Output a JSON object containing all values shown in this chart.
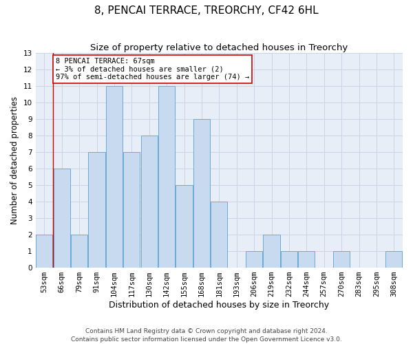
{
  "title1": "8, PENCAI TERRACE, TREORCHY, CF42 6HL",
  "title2": "Size of property relative to detached houses in Treorchy",
  "xlabel": "Distribution of detached houses by size in Treorchy",
  "ylabel": "Number of detached properties",
  "bar_labels": [
    "53sqm",
    "66sqm",
    "79sqm",
    "91sqm",
    "104sqm",
    "117sqm",
    "130sqm",
    "142sqm",
    "155sqm",
    "168sqm",
    "181sqm",
    "193sqm",
    "206sqm",
    "219sqm",
    "232sqm",
    "244sqm",
    "257sqm",
    "270sqm",
    "283sqm",
    "295sqm",
    "308sqm"
  ],
  "bar_values": [
    2,
    6,
    2,
    7,
    11,
    7,
    8,
    11,
    5,
    9,
    4,
    0,
    1,
    2,
    1,
    1,
    0,
    1,
    0,
    0,
    1
  ],
  "bar_color": "#c8daf0",
  "bar_edge_color": "#6aaad4",
  "grid_color": "#c8d4e8",
  "background_color": "#e8eef8",
  "annotation_line1": "8 PENCAI TERRACE: 67sqm",
  "annotation_line2": "← 3% of detached houses are smaller (2)",
  "annotation_line3": "97% of semi-detached houses are larger (74) →",
  "annotation_box_color": "#cc0000",
  "property_line_x": 0.5,
  "ylim": [
    0,
    13
  ],
  "yticks": [
    0,
    1,
    2,
    3,
    4,
    5,
    6,
    7,
    8,
    9,
    10,
    11,
    12,
    13
  ],
  "footer": "Contains HM Land Registry data © Crown copyright and database right 2024.\nContains public sector information licensed under the Open Government Licence v3.0.",
  "title1_fontsize": 11,
  "title2_fontsize": 9.5,
  "xlabel_fontsize": 9,
  "ylabel_fontsize": 8.5,
  "tick_fontsize": 7.5,
  "footer_fontsize": 6.5,
  "ann_fontsize": 7.5
}
